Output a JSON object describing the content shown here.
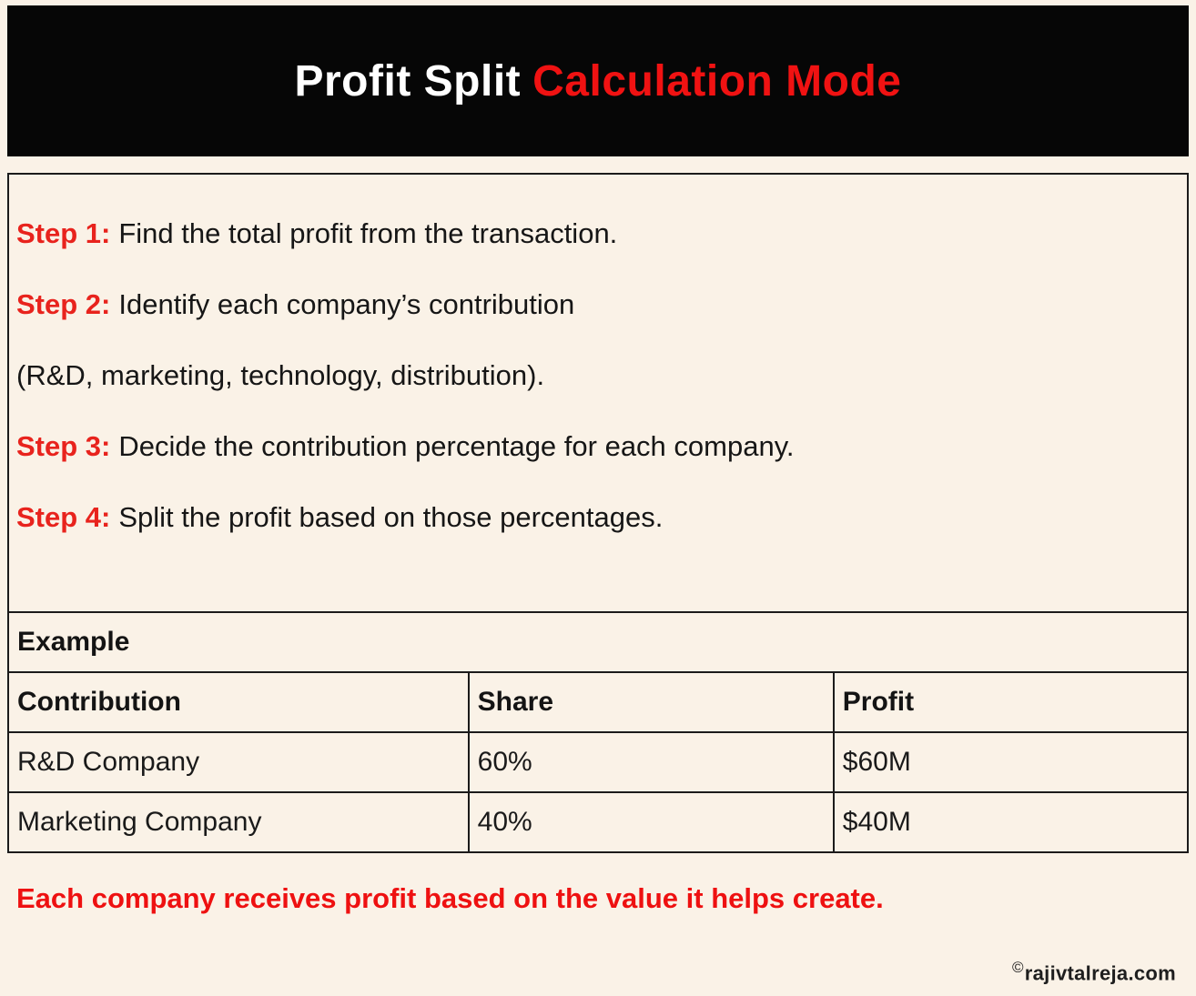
{
  "header": {
    "title_white": "Profit Split",
    "title_red": "Calculation Mode"
  },
  "steps": [
    {
      "label": "Step 1:",
      "text": "Find the total profit from the transaction."
    },
    {
      "label": "Step 2:",
      "text": "Identify each company’s contribution"
    },
    {
      "label": "",
      "text": "(R&D, marketing, technology, distribution)."
    },
    {
      "label": "Step 3:",
      "text": "Decide the contribution percentage for each company."
    },
    {
      "label": "Step 4:",
      "text": "Split the profit based on those percentages."
    }
  ],
  "example": {
    "label": "Example",
    "columns": [
      "Contribution",
      "Share",
      "Profit"
    ],
    "rows": [
      [
        "R&D Company",
        "60%",
        "$60M"
      ],
      [
        "Marketing Company",
        "40%",
        "$40M"
      ]
    ]
  },
  "footer": {
    "note": "Each company receives profit based on the value it helps create.",
    "copyright_symbol": "©",
    "watermark": "rajivtalreja.com"
  },
  "colors": {
    "background": "#FAF2E7",
    "banner": "#060606",
    "title_red": "#F01212",
    "step_red": "#E8231D",
    "note_red": "#EE1111",
    "text": "#161616",
    "border": "#1B1B1B"
  }
}
